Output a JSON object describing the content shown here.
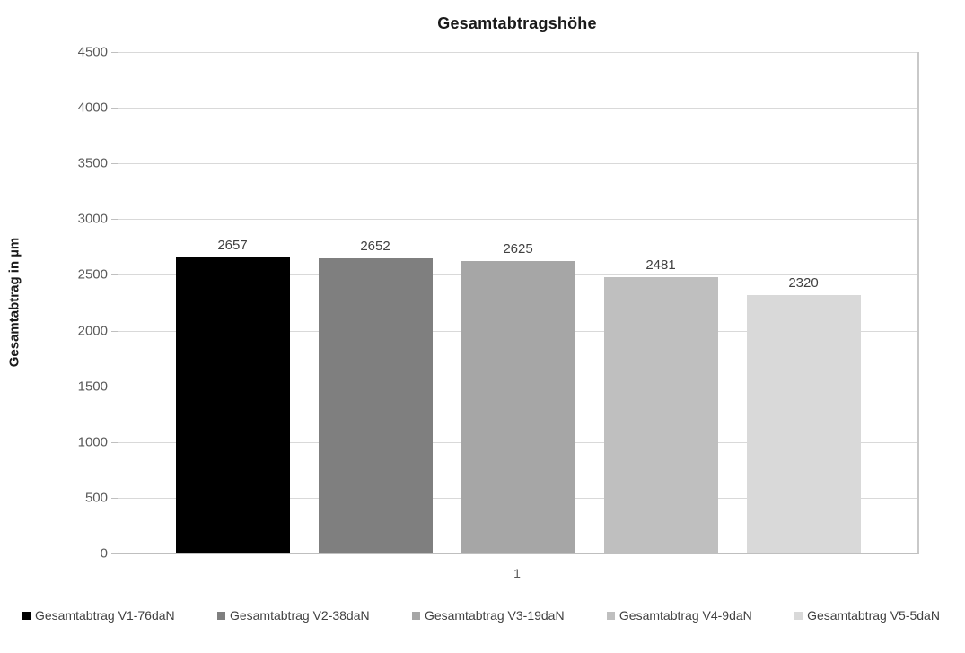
{
  "chart_data": {
    "type": "bar",
    "title": "Gesamtabtragshöhe",
    "xlabel": "",
    "ylabel": "Gesamtabtrag in µm",
    "categories": [
      "1"
    ],
    "series": [
      {
        "name": "Gesamtabtrag V1-76daN",
        "values": [
          2657
        ],
        "color": "#000000"
      },
      {
        "name": "Gesamtabtrag V2-38daN",
        "values": [
          2652
        ],
        "color": "#7f7f7f"
      },
      {
        "name": "Gesamtabtrag V3-19daN",
        "values": [
          2625
        ],
        "color": "#a6a6a6"
      },
      {
        "name": "Gesamtabtrag V4-9daN",
        "values": [
          2481
        ],
        "color": "#bfbfbf"
      },
      {
        "name": "Gesamtabtrag V5-5daN",
        "values": [
          2320
        ],
        "color": "#d9d9d9"
      }
    ],
    "ylim": [
      0,
      4500
    ],
    "ytick_step": 500,
    "yticks": [
      0,
      500,
      1000,
      1500,
      2000,
      2500,
      3000,
      3500,
      4000,
      4500
    ],
    "grid": true,
    "data_labels_shown": true,
    "legend_position": "bottom"
  },
  "colors": {
    "gridline": "#d9d9d9",
    "axis_line": "#bfbfbf",
    "plot_right_border": "#c9c9c9",
    "title_text": "#1a1a1a",
    "tick_label_text": "#595959",
    "data_label_text": "#404040",
    "legend_text": "#404040",
    "background": "#ffffff"
  }
}
